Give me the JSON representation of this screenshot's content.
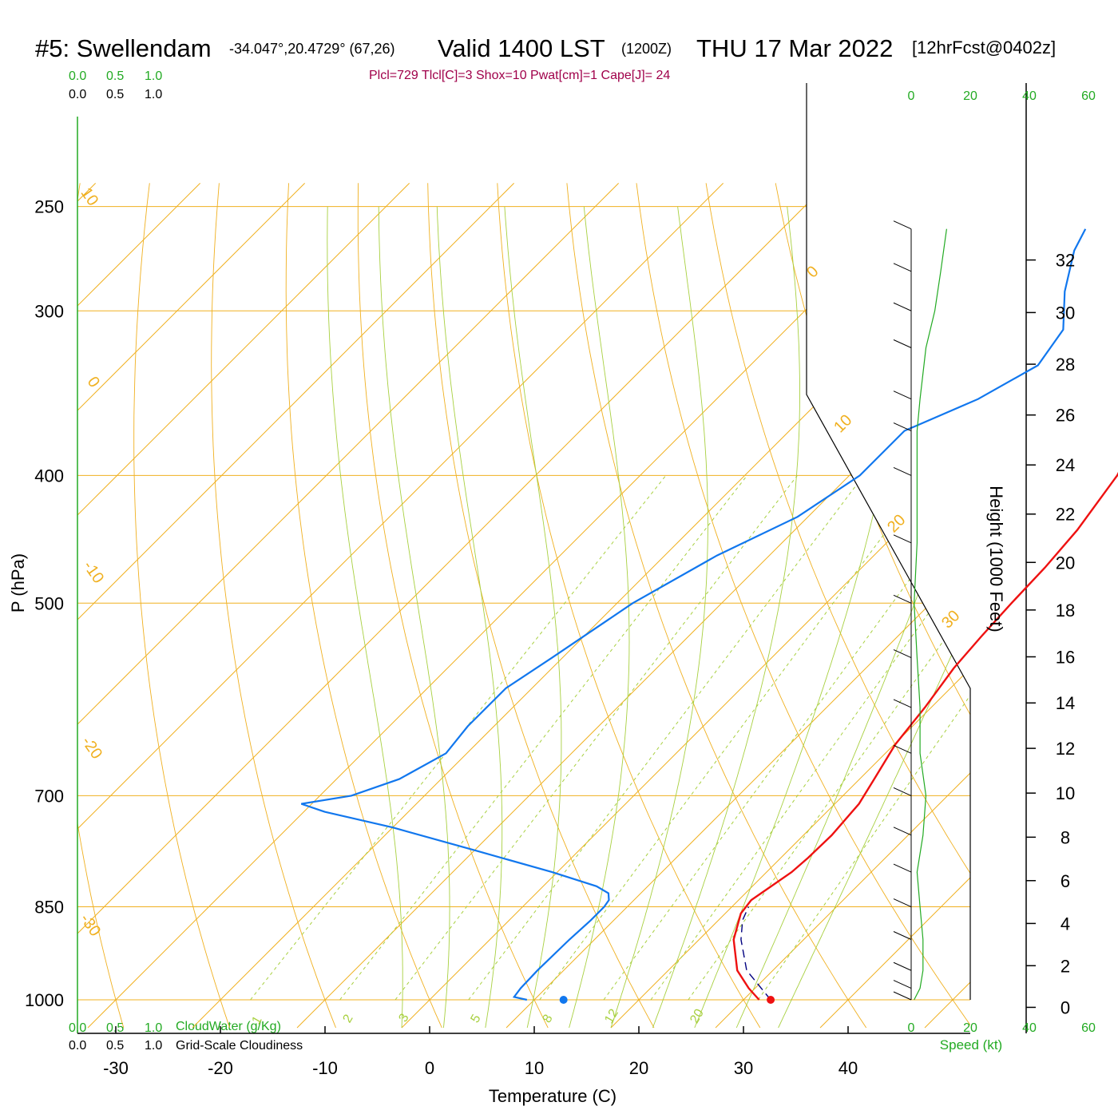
{
  "header": {
    "station": "#5: Swellendam",
    "coords": "-34.047°,20.4729° (67,26)",
    "valid": "Valid 1400 LST",
    "utc": "(1200Z)",
    "date": "THU 17 Mar 2022",
    "forecast": "[12hrFcst@0402z]",
    "stats": "Plcl=729 Tlcl[C]=3 Shox=10 Pwat[cm]=1 Cape[J]= 24"
  },
  "colors": {
    "isotherm": "#f0b020",
    "dry_adiabat": "#f0b020",
    "moist_adiabat": "#a8d040",
    "mixing_ratio": "#a8d040",
    "temperature": "#ee1111",
    "dewpoint": "#1177ee",
    "parcel": "#000080",
    "speed": "#22aa22",
    "stats": "#a0004a"
  },
  "chart_data": {
    "type": "line",
    "diagram": "skew-T log-P",
    "xlabel": "Temperature (C)",
    "ylabel": "P (hPa)",
    "right_label": "Height (1000 Feet)",
    "x_ticks": [
      "-30",
      "-20",
      "-10",
      "0",
      "10",
      "20",
      "30",
      "40"
    ],
    "pressure_ticks": [
      "250",
      "300",
      "400",
      "500",
      "700",
      "850",
      "1000"
    ],
    "height_ticks": [
      "0",
      "2",
      "4",
      "6",
      "8",
      "10",
      "12",
      "14",
      "16",
      "18",
      "20",
      "22",
      "24",
      "26",
      "28",
      "30",
      "32"
    ],
    "isotherm_labels": [
      "10",
      "0",
      "-10",
      "-20",
      "-30",
      "0",
      "10",
      "20",
      "30"
    ],
    "mixing_ratio_labels": [
      "1",
      "2",
      "3",
      "5",
      "8",
      "12",
      "20"
    ],
    "cloud_scale_top_green": [
      "0.0",
      "0.5",
      "1.0"
    ],
    "cloud_scale_top_black": [
      "0.0",
      "0.5",
      "1.0"
    ],
    "cloud_scale_bottom_green": [
      "0.0",
      "0.5",
      "1.0"
    ],
    "cloud_scale_bottom_black": [
      "0.0",
      "0.5",
      "1.0"
    ],
    "cloudwater_label": "CloudWater (g/Kg)",
    "cloudiness_label": "Grid-Scale Cloudiness",
    "speed_ticks": [
      "0",
      "20",
      "40",
      "60"
    ],
    "speed_label": "Speed (kt)",
    "series": [
      {
        "name": "temperature",
        "points": [
          [
            1000,
            31.5
          ],
          [
            980,
            29.4
          ],
          [
            950,
            26.6
          ],
          [
            900,
            23.3
          ],
          [
            860,
            21.5
          ],
          [
            840,
            21.2
          ],
          [
            820,
            21.8
          ],
          [
            800,
            22.4
          ],
          [
            780,
            22.6
          ],
          [
            750,
            22.7
          ],
          [
            710,
            22.3
          ],
          [
            680,
            21.4
          ],
          [
            640,
            20.1
          ],
          [
            600,
            19.4
          ],
          [
            560,
            18.4
          ],
          [
            530,
            18.0
          ],
          [
            500,
            17.7
          ],
          [
            470,
            17.5
          ],
          [
            440,
            17.0
          ],
          [
            400,
            15.6
          ],
          [
            380,
            14.3
          ],
          [
            360,
            13.2
          ],
          [
            340,
            11.8
          ],
          [
            320,
            10.1
          ],
          [
            300,
            7.7
          ],
          [
            280,
            5.4
          ],
          [
            260,
            3.1
          ]
        ]
      },
      {
        "name": "dewpoint",
        "points": [
          [
            1000,
            9.3
          ],
          [
            995,
            7.8
          ],
          [
            980,
            7.6
          ],
          [
            950,
            7.5
          ],
          [
            900,
            7.6
          ],
          [
            870,
            7.8
          ],
          [
            850,
            7.8
          ],
          [
            840,
            7.6
          ],
          [
            830,
            6.9
          ],
          [
            820,
            5.1
          ],
          [
            800,
            -0.5
          ],
          [
            770,
            -10
          ],
          [
            740,
            -20
          ],
          [
            720,
            -28
          ],
          [
            710,
            -31
          ],
          [
            700,
            -27
          ],
          [
            680,
            -24
          ],
          [
            650,
            -22
          ],
          [
            620,
            -22.5
          ],
          [
            580,
            -22.5
          ],
          [
            550,
            -21
          ],
          [
            500,
            -18.5
          ],
          [
            460,
            -15
          ],
          [
            430,
            -11
          ],
          [
            400,
            -9
          ],
          [
            370,
            -9
          ],
          [
            350,
            -5
          ],
          [
            330,
            -2.5
          ],
          [
            310,
            -3.5
          ],
          [
            290,
            -7
          ],
          [
            270,
            -10
          ],
          [
            260,
            -11
          ]
        ]
      },
      {
        "name": "parcel",
        "points": [
          [
            1000,
            32.6
          ],
          [
            950,
            27.5
          ],
          [
            900,
            24.0
          ],
          [
            870,
            22.3
          ],
          [
            850,
            21.6
          ]
        ]
      }
    ],
    "surface_temperature_marker": 32.6,
    "surface_dewpoint_marker": 12.8,
    "wind_speed_kt": [
      [
        1000,
        1
      ],
      [
        980,
        3
      ],
      [
        950,
        4
      ],
      [
        900,
        4
      ],
      [
        850,
        3
      ],
      [
        800,
        2
      ],
      [
        750,
        4
      ],
      [
        700,
        5
      ],
      [
        650,
        3
      ],
      [
        600,
        3
      ],
      [
        550,
        2
      ],
      [
        500,
        1
      ],
      [
        450,
        2
      ],
      [
        400,
        2
      ],
      [
        370,
        2
      ],
      [
        350,
        3
      ],
      [
        320,
        5
      ],
      [
        300,
        8
      ],
      [
        280,
        10
      ],
      [
        260,
        12
      ]
    ]
  }
}
